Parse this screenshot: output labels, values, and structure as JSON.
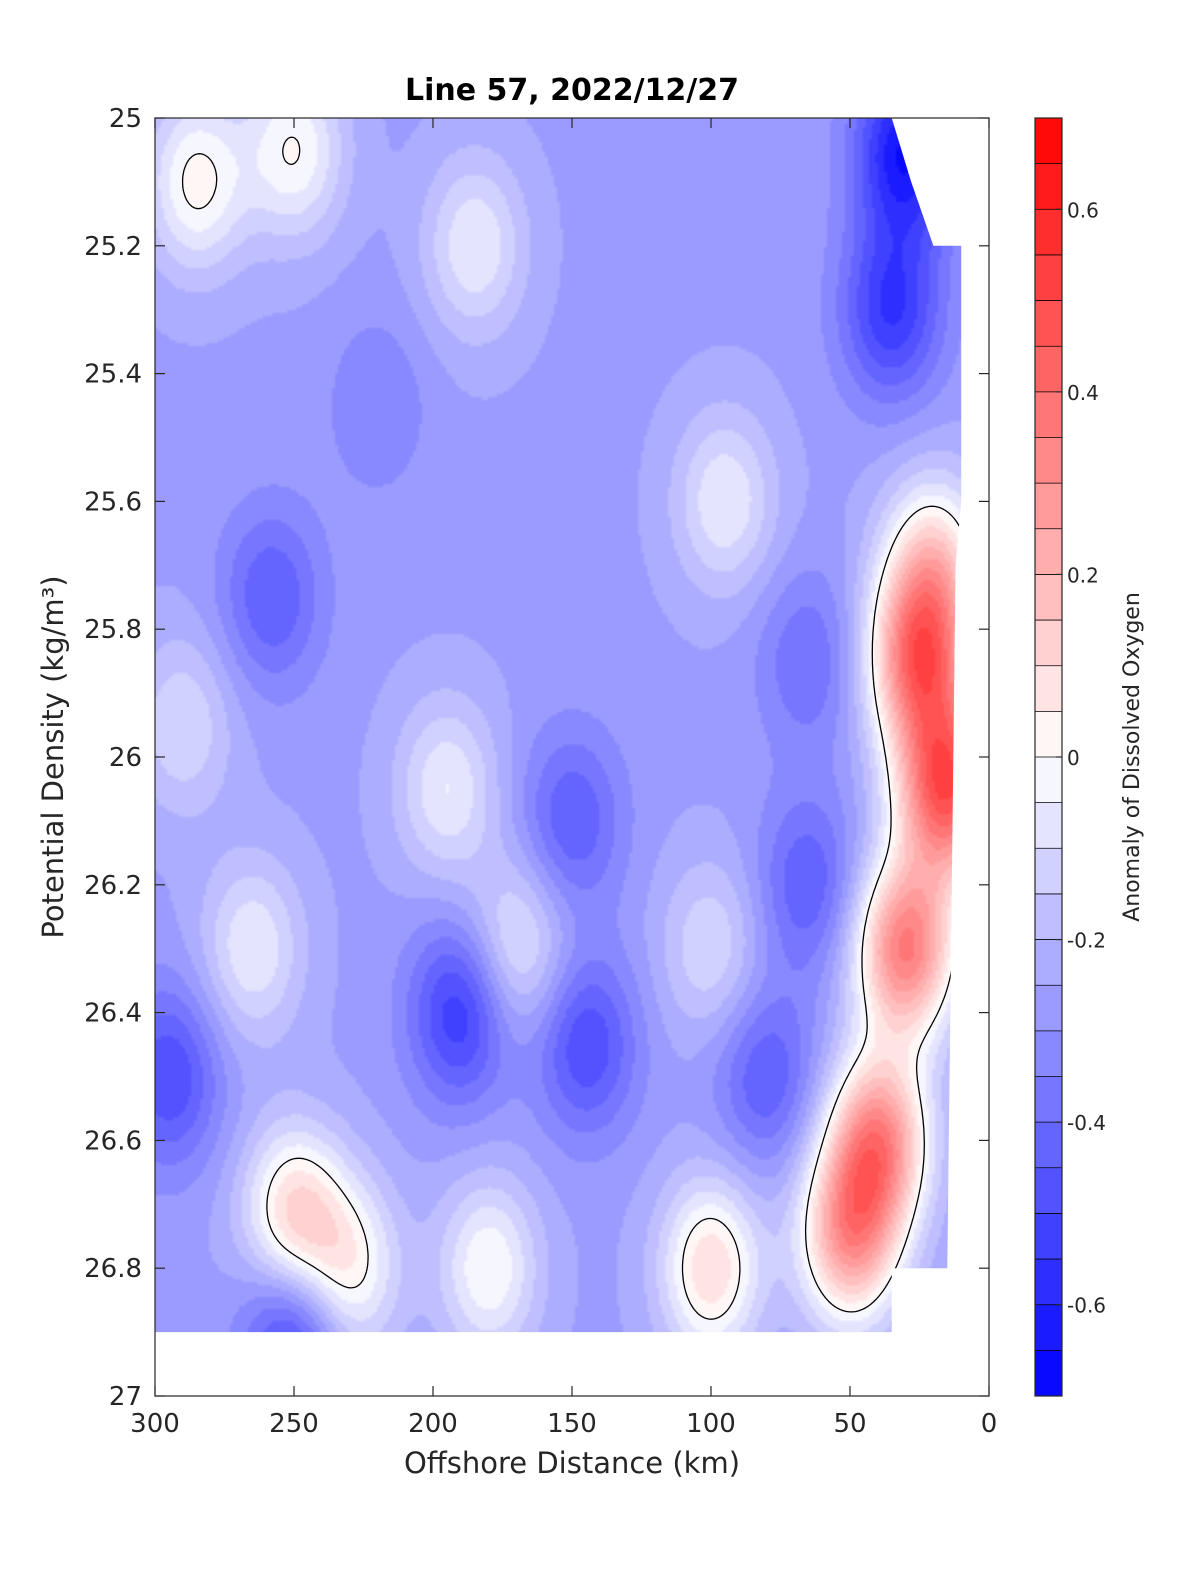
{
  "chart_data": {
    "type": "heatmap",
    "title": "Line 57, 2022/12/27",
    "xlabel": "Offshore Distance (km)",
    "ylabel": "Potential Density (kg/m³)",
    "xlim": [
      300,
      0
    ],
    "ylim": [
      27,
      25
    ],
    "x_reversed": true,
    "y_reversed": true,
    "x_ticks": [
      300,
      250,
      200,
      150,
      100,
      50,
      0
    ],
    "y_ticks": [
      25,
      25.2,
      25.4,
      25.6,
      25.8,
      26,
      26.2,
      26.4,
      26.6,
      26.8,
      27
    ],
    "x_tick_labels": [
      "300",
      "250",
      "200",
      "150",
      "100",
      "50",
      "0"
    ],
    "y_tick_labels": [
      "25",
      "25.2",
      "25.4",
      "25.6",
      "25.8",
      "26",
      "26.2",
      "26.4",
      "26.6",
      "26.8",
      "27"
    ],
    "colorbar": {
      "label": "Anomaly of Dissolved Oxygen",
      "clim": [
        -0.7,
        0.7
      ],
      "ticks": [
        0.6,
        0.4,
        0.2,
        0,
        -0.2,
        -0.4,
        -0.6
      ],
      "tick_labels": [
        "0.6",
        "0.4",
        "0.2",
        "0",
        "-0.2",
        "-0.4",
        "-0.6"
      ],
      "colormap": "blue-white-red",
      "colors": {
        "negative": "#0000ff",
        "zero": "#ffffff",
        "positive": "#ff0000"
      },
      "levels": 28
    },
    "data_coverage": {
      "x_range": [
        300,
        10
      ],
      "y_range": [
        25,
        26.9
      ]
    },
    "features": [
      {
        "x": 258,
        "y": 25.75,
        "value": -0.45
      },
      {
        "x": 190,
        "y": 26.4,
        "value": -0.55
      },
      {
        "x": 145,
        "y": 26.45,
        "value": -0.5
      },
      {
        "x": 150,
        "y": 26.1,
        "value": -0.45
      },
      {
        "x": 295,
        "y": 26.5,
        "value": -0.5
      },
      {
        "x": 35,
        "y": 25.3,
        "value": -0.55
      },
      {
        "x": 30,
        "y": 25.05,
        "value": -0.65
      },
      {
        "x": 250,
        "y": 26.9,
        "value": -0.55
      },
      {
        "x": 80,
        "y": 26.5,
        "value": -0.45
      },
      {
        "x": 65,
        "y": 26.2,
        "value": -0.45
      },
      {
        "x": 65,
        "y": 25.85,
        "value": -0.4
      },
      {
        "x": 220,
        "y": 25.45,
        "value": -0.35
      },
      {
        "x": 185,
        "y": 25.2,
        "value": -0.05
      },
      {
        "x": 95,
        "y": 25.6,
        "value": -0.05
      },
      {
        "x": 265,
        "y": 26.3,
        "value": -0.05
      },
      {
        "x": 195,
        "y": 26.05,
        "value": -0.05
      },
      {
        "x": 170,
        "y": 26.3,
        "value": -0.05
      },
      {
        "x": 100,
        "y": 26.3,
        "value": -0.1
      },
      {
        "x": 290,
        "y": 25.95,
        "value": -0.1
      },
      {
        "x": 285,
        "y": 25.1,
        "value": 0.02
      },
      {
        "x": 250,
        "y": 25.05,
        "value": 0.0
      },
      {
        "x": 180,
        "y": 26.8,
        "value": 0.0
      },
      {
        "x": 230,
        "y": 26.8,
        "value": 0.02
      },
      {
        "x": 250,
        "y": 26.72,
        "value": 0.12
      },
      {
        "x": 100,
        "y": 26.8,
        "value": 0.1
      },
      {
        "x": 15,
        "y": 26.05,
        "value": 0.45
      },
      {
        "x": 25,
        "y": 25.85,
        "value": 0.35
      },
      {
        "x": 30,
        "y": 26.3,
        "value": 0.35
      },
      {
        "x": 40,
        "y": 26.6,
        "value": 0.3
      },
      {
        "x": 50,
        "y": 26.75,
        "value": 0.25
      },
      {
        "x": 20,
        "y": 25.7,
        "value": 0.1
      }
    ],
    "contour_level": 0
  }
}
